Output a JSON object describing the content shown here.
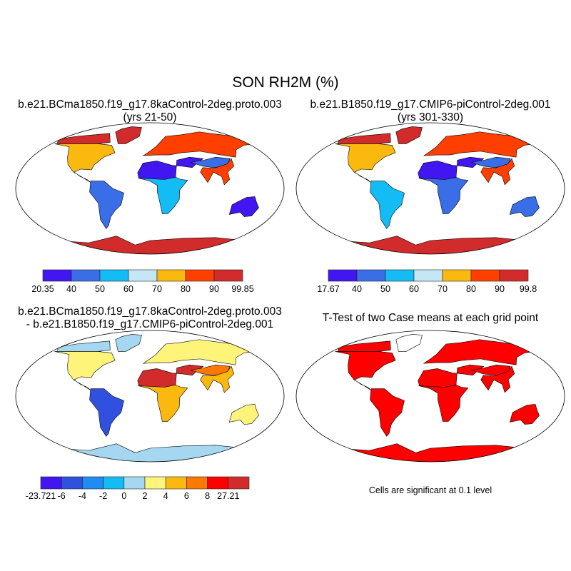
{
  "title": "SON RH2M (%)",
  "panels": [
    {
      "title_line1": "b.e21.BCma1850.f19_g17.8kaControl-2deg.proto.003",
      "title_line2": "(yrs 21-50)",
      "colorbar": {
        "labels": [
          "20.35",
          "40",
          "50",
          "60",
          "70",
          "80",
          "90",
          "99.85"
        ],
        "colors": [
          "#4216f0",
          "#3a6ee6",
          "#14bcf5",
          "#c5e6f5",
          "#fbb90f",
          "#ff3f00",
          "#d22b2b"
        ]
      },
      "region_colors": {
        "arctic": "#d22b2b",
        "northam": "#fbb90f",
        "southam": "#3a6ee6",
        "sahara": "#4216f0",
        "africa_s": "#14bcf5",
        "eurasia_n": "#ff3f00",
        "asia_c": "#3a6ee6",
        "seasia": "#ff3f00",
        "australia": "#4216f0",
        "antarctica": "#d22b2b",
        "greenland": "#d22b2b"
      }
    },
    {
      "title_line1": "b.e21.B1850.f19_g17.CMIP6-piControl-2deg.001",
      "title_line2": "(yrs 301-330)",
      "colorbar": {
        "labels": [
          "17.67",
          "40",
          "50",
          "60",
          "70",
          "80",
          "90",
          "99.8"
        ],
        "colors": [
          "#4216f0",
          "#3a6ee6",
          "#14bcf5",
          "#c5e6f5",
          "#fbb90f",
          "#ff3f00",
          "#d22b2b"
        ]
      },
      "region_colors": {
        "arctic": "#d22b2b",
        "northam": "#fbb90f",
        "southam": "#14bcf5",
        "sahara": "#4216f0",
        "africa_s": "#3a6ee6",
        "eurasia_n": "#ff3f00",
        "asia_c": "#3a6ee6",
        "seasia": "#ff3f00",
        "australia": "#3a6ee6",
        "antarctica": "#d22b2b",
        "greenland": "#d22b2b"
      }
    },
    {
      "title_line1": "b.e21.BCma1850.f19_g17.8kaControl-2deg.proto.003",
      "title_line2": "- b.e21.B1850.f19_g17.CMIP6-piControl-2deg.001",
      "colorbar": {
        "labels": [
          "-23.721",
          "-6",
          "-4",
          "-2",
          "0",
          "2",
          "4",
          "6",
          "8",
          "27.21"
        ],
        "colors": [
          "#4216f0",
          "#3050e0",
          "#1e8cf0",
          "#14bcf5",
          "#a5d8f0",
          "#fff47a",
          "#fbb90f",
          "#ff7800",
          "#ff0000",
          "#d22b2b"
        ]
      },
      "region_colors": {
        "arctic": "#a5d8f0",
        "northam": "#fff47a",
        "southam": "#3050e0",
        "sahara": "#d22b2b",
        "africa_s": "#fbb90f",
        "eurasia_n": "#fff47a",
        "asia_c": "#ff7800",
        "seasia": "#fbb90f",
        "australia": "#fff47a",
        "antarctica": "#a5d8f0",
        "greenland": "#a5d8f0"
      }
    },
    {
      "title_line1": "T-Test of two Case means at each grid point",
      "title_line2": "",
      "note": "Cells are significant at 0.1 level",
      "region_colors": {
        "arctic": "#ff0000",
        "northam": "#ff0000",
        "southam": "#ff0000",
        "sahara": "#ff0000",
        "africa_s": "#ff0000",
        "eurasia_n": "#ff0000",
        "asia_c": "#ff0000",
        "seasia": "#ff0000",
        "australia": "#ff0000",
        "antarctica": "#ff0000",
        "greenland": "#ffffff"
      }
    }
  ]
}
